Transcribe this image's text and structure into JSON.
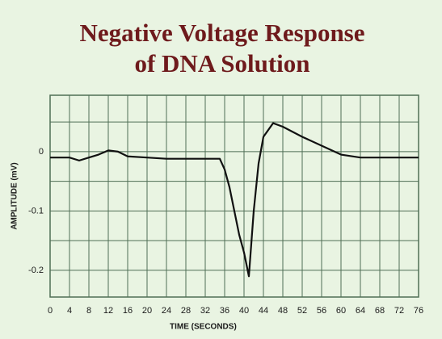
{
  "chart_data": {
    "type": "line",
    "title": [
      "Negative Voltage Response",
      "of DNA Solution"
    ],
    "x_label": "TIME (SECONDS)",
    "y_label": "AMPLITUDE (mV)",
    "x": [
      0,
      4,
      6,
      8,
      10,
      12,
      14,
      16,
      20,
      24,
      28,
      32,
      35,
      36,
      37,
      38,
      39,
      40,
      41,
      42,
      43,
      44,
      46,
      48,
      52,
      56,
      60,
      64,
      68,
      72,
      76
    ],
    "series": [
      {
        "color": "#111111",
        "values": [
          -0.01,
          -0.01,
          -0.015,
          -0.01,
          -0.005,
          0.002,
          0.0,
          -0.008,
          -0.01,
          -0.012,
          -0.012,
          -0.012,
          -0.012,
          -0.03,
          -0.06,
          -0.1,
          -0.14,
          -0.17,
          -0.21,
          -0.1,
          -0.02,
          0.025,
          0.048,
          0.042,
          0.025,
          0.01,
          -0.005,
          -0.01,
          -0.01,
          -0.01,
          -0.01
        ]
      }
    ],
    "xlim": [
      0,
      76
    ],
    "xticks": [
      0,
      4,
      8,
      12,
      16,
      20,
      24,
      28,
      32,
      36,
      40,
      44,
      48,
      52,
      56,
      60,
      64,
      68,
      72,
      76
    ],
    "ylim": [
      -0.245,
      0.095
    ],
    "yticks": [
      0,
      -0.1,
      -0.2
    ],
    "y_gridlines": [
      0.05,
      0,
      -0.05,
      -0.1,
      -0.15,
      -0.2
    ],
    "grid": true,
    "grid_color": "#4f6e55"
  }
}
